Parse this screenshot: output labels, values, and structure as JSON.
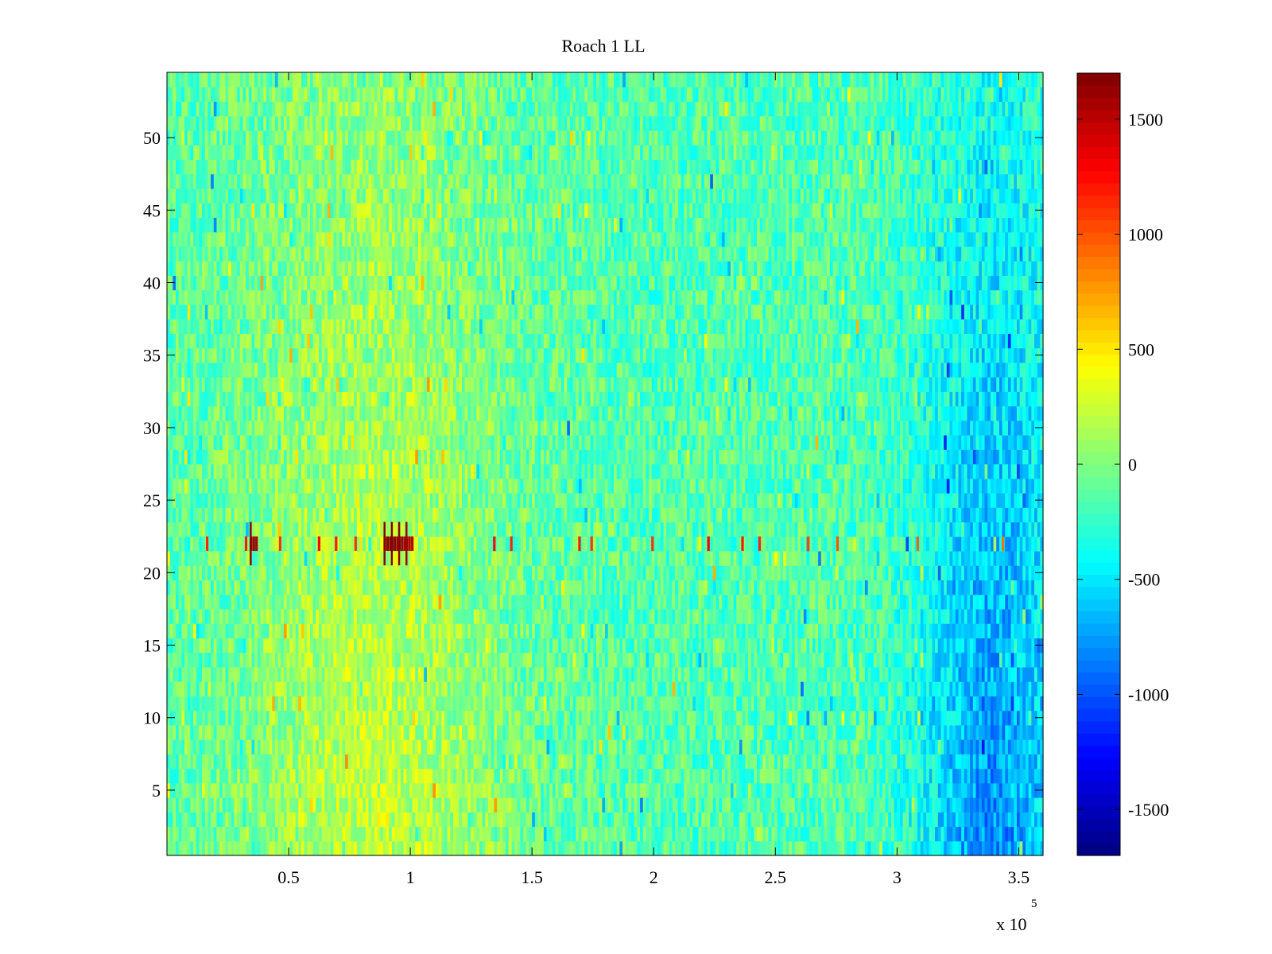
{
  "chart_data": {
    "type": "heatmap",
    "title": "Roach 1 LL",
    "xlabel": "",
    "ylabel": "",
    "x_multiplier_label": "x 10",
    "x_multiplier_exponent": "5",
    "x_scale_factor": 100000,
    "xlim": [
      0,
      360000
    ],
    "ylim": [
      0.5,
      54.5
    ],
    "rows": 54,
    "x_ticks": [
      {
        "value": 50000,
        "label": "0.5"
      },
      {
        "value": 100000,
        "label": "1"
      },
      {
        "value": 150000,
        "label": "1.5"
      },
      {
        "value": 200000,
        "label": "2"
      },
      {
        "value": 250000,
        "label": "2.5"
      },
      {
        "value": 300000,
        "label": "3"
      },
      {
        "value": 350000,
        "label": "3.5"
      }
    ],
    "y_ticks": [
      {
        "value": 5,
        "label": "5"
      },
      {
        "value": 10,
        "label": "10"
      },
      {
        "value": 15,
        "label": "15"
      },
      {
        "value": 20,
        "label": "20"
      },
      {
        "value": 25,
        "label": "25"
      },
      {
        "value": 30,
        "label": "30"
      },
      {
        "value": 35,
        "label": "35"
      },
      {
        "value": 40,
        "label": "40"
      },
      {
        "value": 45,
        "label": "45"
      },
      {
        "value": 50,
        "label": "50"
      }
    ],
    "colorbar": {
      "colormap": "jet",
      "clim": [
        -1700,
        1700
      ],
      "ticks": [
        {
          "value": 1500,
          "label": "1500"
        },
        {
          "value": 1000,
          "label": "1000"
        },
        {
          "value": 500,
          "label": "500"
        },
        {
          "value": 0,
          "label": "0"
        },
        {
          "value": -500,
          "label": "-500"
        },
        {
          "value": -1000,
          "label": "-1000"
        },
        {
          "value": -1500,
          "label": "-1500"
        }
      ]
    },
    "trends": {
      "baseline": -150,
      "warm_center_x": 85000,
      "warm_amplitude_low_rows": 380,
      "warm_amplitude_high_rows": 200,
      "cool_center_x": 340000,
      "cool_amplitude_low_rows": -650,
      "cool_amplitude_high_rows": -200,
      "noise_amplitude": 260
    },
    "hot_row": {
      "y": 22,
      "base_value": 300,
      "spikes": [
        {
          "x": 16000,
          "value": 1150
        },
        {
          "x": 32000,
          "value": 1200
        },
        {
          "x": 34000,
          "value": 1650
        },
        {
          "x": 46000,
          "value": 1100
        },
        {
          "x": 62000,
          "value": 1250
        },
        {
          "x": 69000,
          "value": 1200
        },
        {
          "x": 77000,
          "value": 1100
        },
        {
          "x": 89000,
          "value": 1700
        },
        {
          "x": 92000,
          "value": 1700
        },
        {
          "x": 95000,
          "value": 1650
        },
        {
          "x": 98000,
          "value": 1600
        },
        {
          "x": 134000,
          "value": 1250
        },
        {
          "x": 141000,
          "value": 1150
        },
        {
          "x": 169000,
          "value": 1200
        },
        {
          "x": 174000,
          "value": 1100
        },
        {
          "x": 199000,
          "value": 1100
        },
        {
          "x": 222000,
          "value": 1300
        },
        {
          "x": 236000,
          "value": 1200
        },
        {
          "x": 243000,
          "value": 1150
        },
        {
          "x": 263000,
          "value": 1050
        },
        {
          "x": 275000,
          "value": 1000
        },
        {
          "x": 308000,
          "value": 950
        },
        {
          "x": 343000,
          "value": 900
        }
      ]
    }
  }
}
